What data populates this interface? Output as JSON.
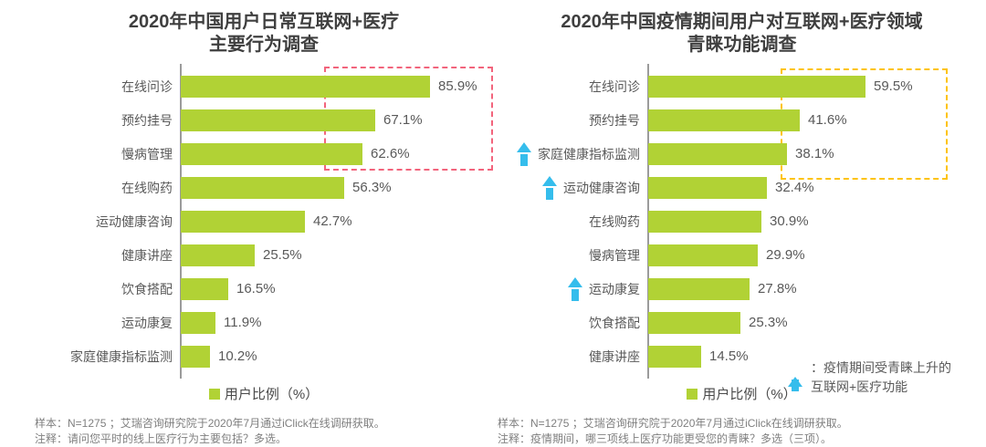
{
  "colors": {
    "bar_green": "#b1d235",
    "axis_gray": "#9b9b9b",
    "title_text": "#3f3f3f",
    "body_text": "#595959",
    "footnote_text": "#7f7f7f",
    "arrow_blue": "#35bdec",
    "highlight_box_left": "#f2647c",
    "highlight_box_right": "#fdc30b",
    "legend_swatch": "#b1d235"
  },
  "chart_data": [
    {
      "type": "bar",
      "orientation": "horizontal",
      "title_lines": [
        "2020年中国用户日常互联网+医疗",
        "主要行为调查"
      ],
      "categories": [
        "在线问诊",
        "预约挂号",
        "慢病管理",
        "在线购药",
        "运动健康咨询",
        "健康讲座",
        "饮食搭配",
        "运动康复",
        "家庭健康指标监测"
      ],
      "values": [
        85.9,
        67.1,
        62.6,
        56.3,
        42.7,
        25.5,
        16.5,
        11.9,
        10.2
      ],
      "unit": "%",
      "value_labels_shown": true,
      "grid": false,
      "legend": "用户比例（%）",
      "legend_position": "bottom-center",
      "highlight": {
        "rows_boxed": [
          0,
          1,
          2
        ],
        "box_color": "#f2647c",
        "box_style": "dashed"
      },
      "footnotes": [
        "样本：N=1275 ；艾瑞咨询研究院于2020年7月通过iClick在线调研获取。",
        "注释：请问您平时的线上医疗行为主要包括？多选。"
      ]
    },
    {
      "type": "bar",
      "orientation": "horizontal",
      "title_lines": [
        "2020年中国疫情期间用户对互联网+医疗领域",
        "青睐功能调查"
      ],
      "categories": [
        "在线问诊",
        "预约挂号",
        "家庭健康指标监测",
        "运动健康咨询",
        "在线购药",
        "慢病管理",
        "运动康复",
        "饮食搭配",
        "健康讲座"
      ],
      "values": [
        59.5,
        41.6,
        38.1,
        32.4,
        30.9,
        29.9,
        27.8,
        25.3,
        14.5
      ],
      "unit": "%",
      "value_labels_shown": true,
      "grid": false,
      "legend": "用户比例（%）",
      "legend_position": "bottom-center",
      "arrow_rows": [
        2,
        3,
        6
      ],
      "arrow_legend_lines": [
        "：疫情期间受青睐上升的",
        "互联网+医疗功能"
      ],
      "highlight": {
        "rows_boxed": [
          0,
          1,
          2
        ],
        "box_color": "#fdc30b",
        "box_style": "dashed"
      },
      "footnotes": [
        "样本：N=1275 ；艾瑞咨询研究院于2020年7月通过iClick在线调研获取。",
        "注释：疫情期间，哪三项线上医疗功能更受您的青睐？多选（三项）。"
      ]
    }
  ]
}
